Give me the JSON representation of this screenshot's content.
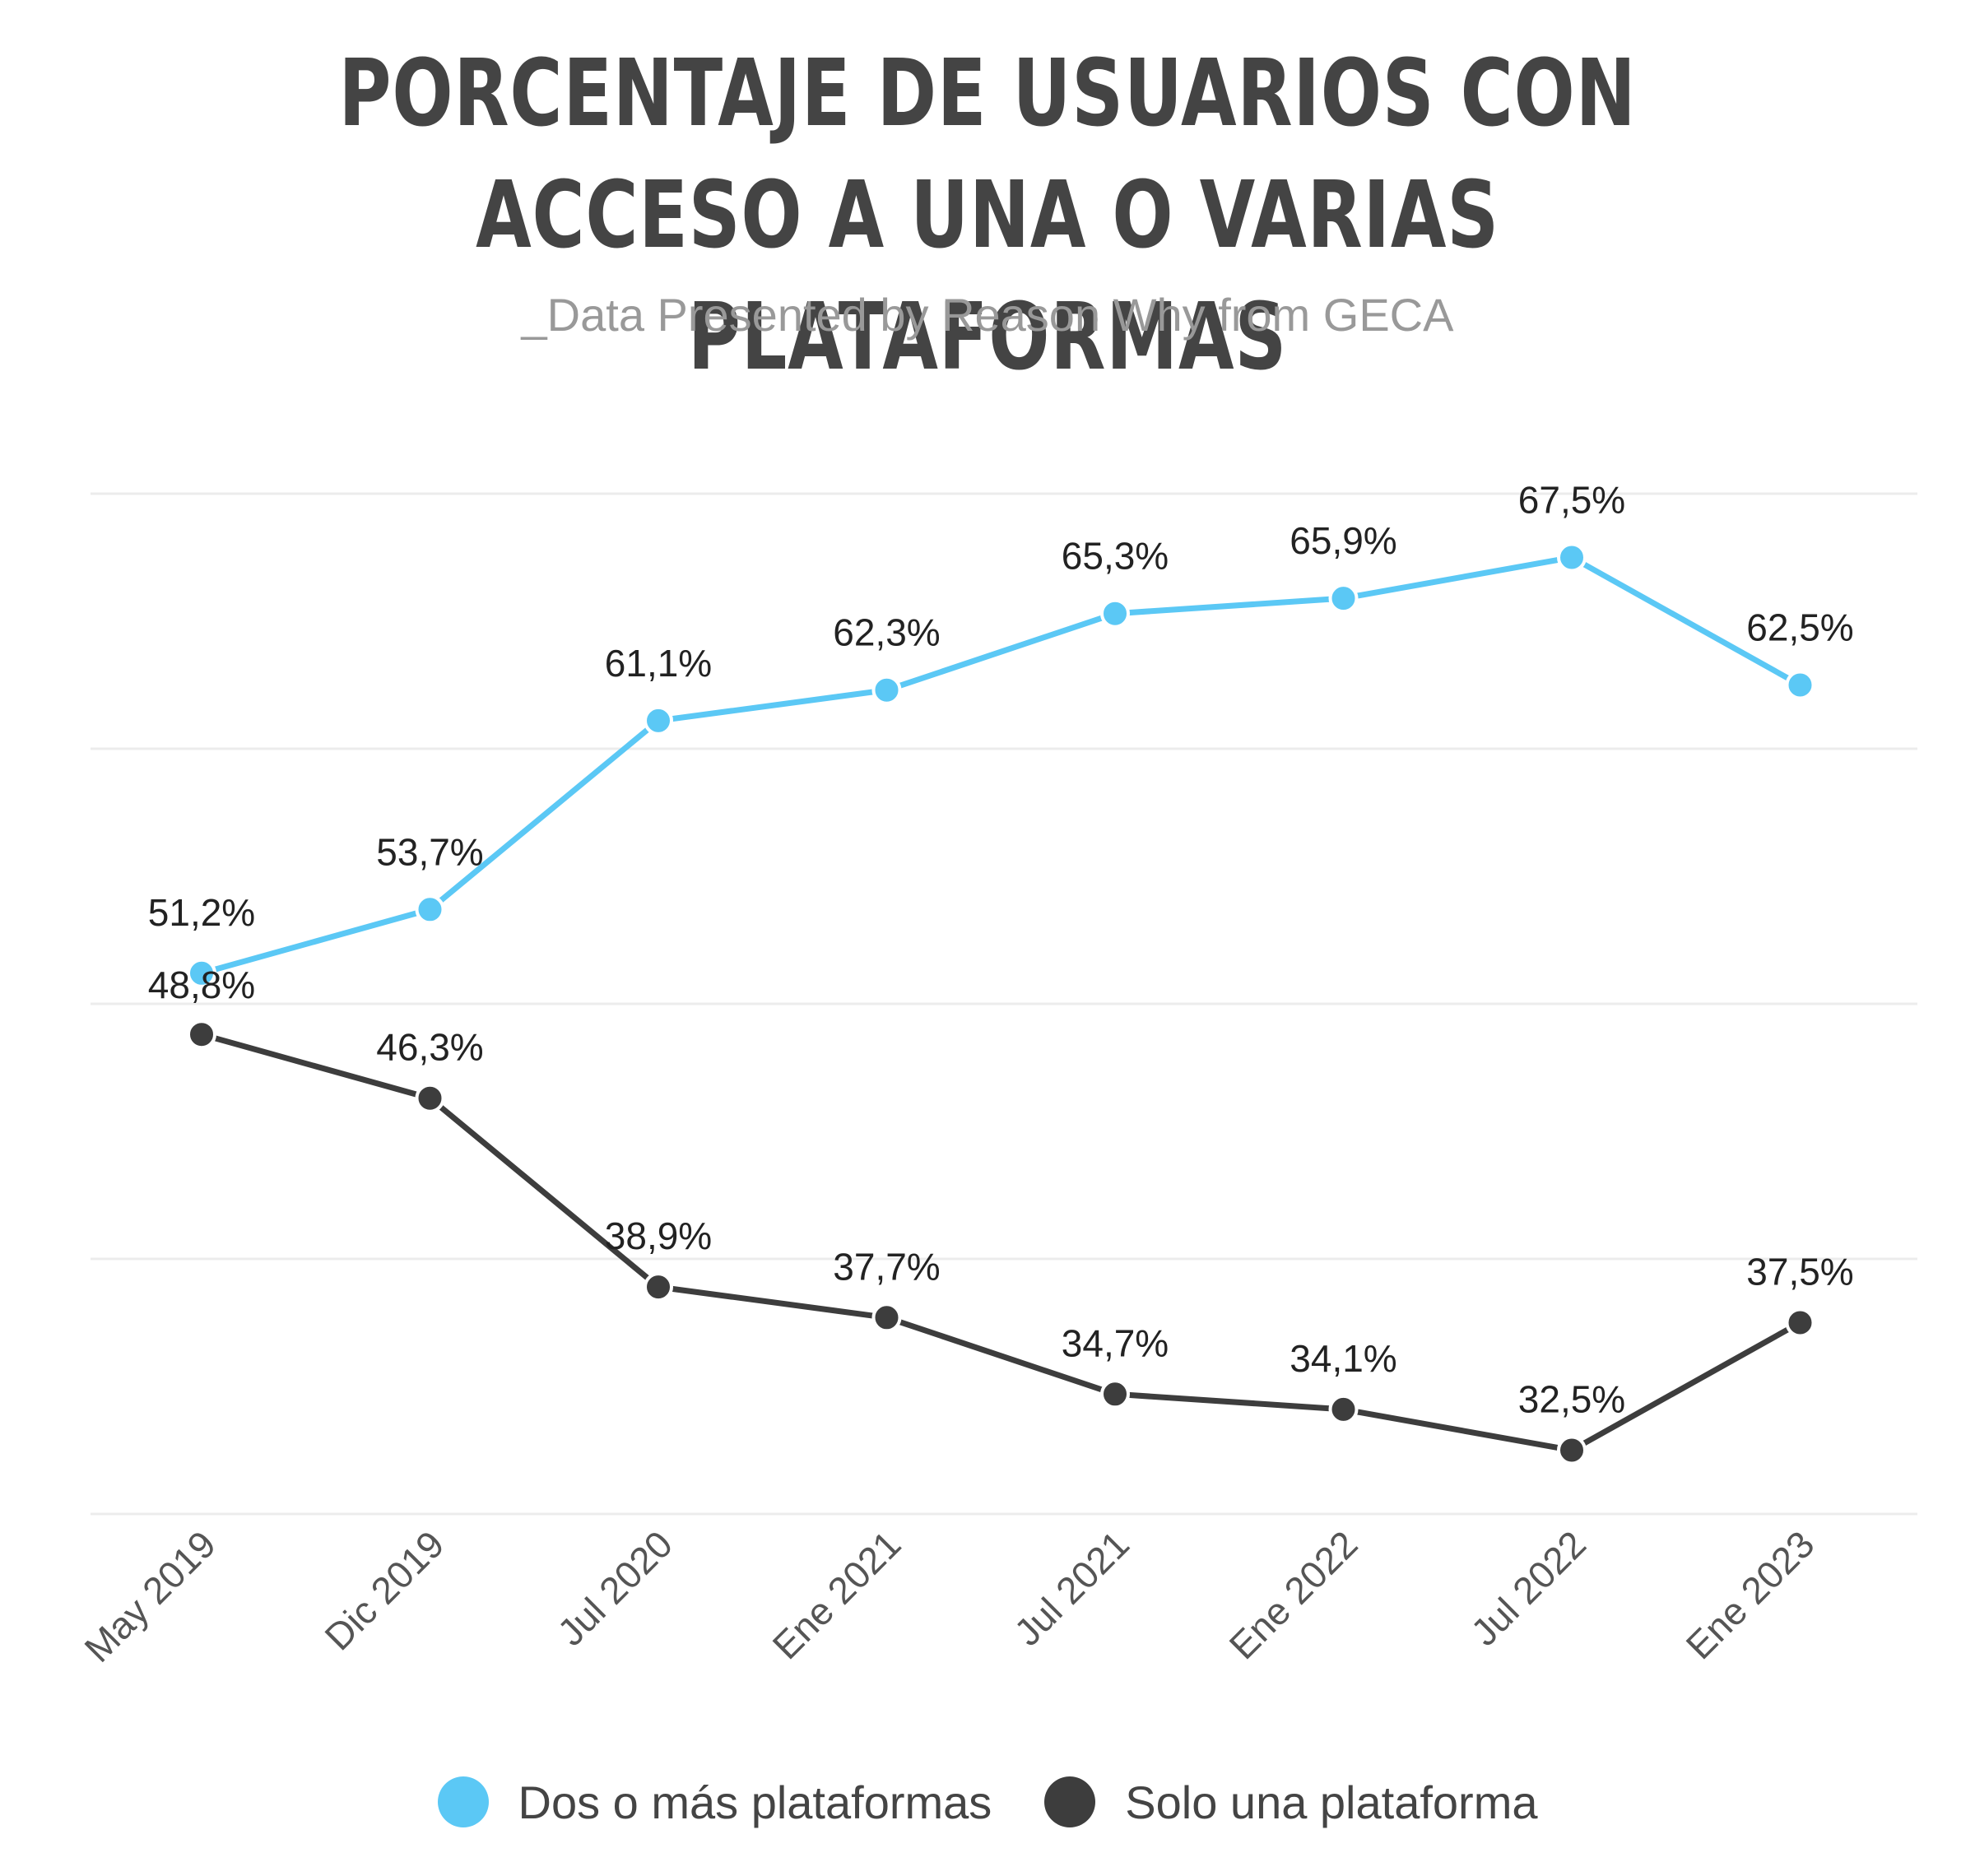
{
  "chart_data": {
    "type": "line",
    "title": "PORCENTAJE DE USUARIOS CON ACCESO A UNA O VARIAS PLATAFORMAS",
    "subtitle": "_Data Presented by Reason Why from GECA",
    "categories": [
      "May 2019",
      "Dic 2019",
      "Jul 2020",
      "Ene 2021",
      "Jul 2021",
      "Ene 2022",
      "Jul 2022",
      "Ene 2023"
    ],
    "ylim": [
      30,
      70
    ],
    "grid": true,
    "legend_position": "bottom",
    "series": [
      {
        "name": "Dos o más plataformas",
        "color": "#5BC8F5",
        "values": [
          51.2,
          53.7,
          61.1,
          62.3,
          65.3,
          65.9,
          67.5,
          62.5
        ],
        "labels": [
          "51,2%",
          "53,7%",
          "61,1%",
          "62,3%",
          "65,3%",
          "65,9%",
          "67,5%",
          "62,5%"
        ]
      },
      {
        "name": "Solo una plataforma",
        "color": "#3D3D3D",
        "values": [
          48.8,
          46.3,
          38.9,
          37.7,
          34.7,
          34.1,
          32.5,
          37.5
        ],
        "labels": [
          "48,8%",
          "46,3%",
          "38,9%",
          "37,7%",
          "34,7%",
          "34,1%",
          "32,5%",
          "37,5%"
        ]
      }
    ]
  }
}
